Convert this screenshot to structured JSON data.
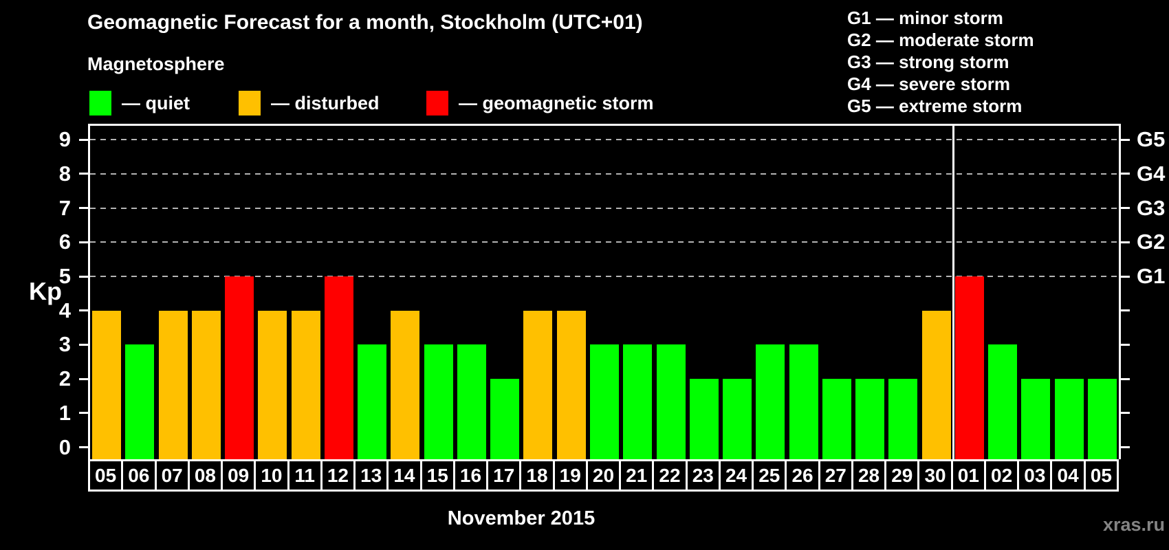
{
  "header": {
    "title": "Geomagnetic Forecast for a month, Stockholm (UTC+01)",
    "subtitle": "Magnetosphere"
  },
  "magnetosphere_legend": {
    "items": [
      {
        "key": "quiet",
        "label": "— quiet",
        "color": "#00ff00"
      },
      {
        "key": "disturbed",
        "label": "— disturbed",
        "color": "#ffc000"
      },
      {
        "key": "storm",
        "label": "— geomagnetic storm",
        "color": "#ff0000"
      }
    ]
  },
  "storm_scale_legend": {
    "items": [
      "G1 — minor storm",
      "G2 — moderate storm",
      "G3 — strong storm",
      "G4 — severe storm",
      "G5 — extreme storm"
    ]
  },
  "chart_data": {
    "type": "bar",
    "title": "Geomagnetic Forecast for a month, Stockholm (UTC+01)",
    "ylabel": "Kp",
    "xlabel": "November 2015",
    "ylim": [
      0,
      9
    ],
    "left_axis_ticks": [
      0,
      1,
      2,
      3,
      4,
      5,
      6,
      7,
      8,
      9
    ],
    "gridlines_at_kp": [
      5,
      6,
      7,
      8,
      9
    ],
    "right_axis_labels": [
      {
        "kp": 5,
        "label": "G1"
      },
      {
        "kp": 6,
        "label": "G2"
      },
      {
        "kp": 7,
        "label": "G3"
      },
      {
        "kp": 8,
        "label": "G4"
      },
      {
        "kp": 9,
        "label": "G5"
      }
    ],
    "month_separator_before_index": 26,
    "days": [
      {
        "day": "05",
        "kp": 4,
        "status": "disturbed"
      },
      {
        "day": "06",
        "kp": 3,
        "status": "quiet"
      },
      {
        "day": "07",
        "kp": 4,
        "status": "disturbed"
      },
      {
        "day": "08",
        "kp": 4,
        "status": "disturbed"
      },
      {
        "day": "09",
        "kp": 5,
        "status": "storm"
      },
      {
        "day": "10",
        "kp": 4,
        "status": "disturbed"
      },
      {
        "day": "11",
        "kp": 4,
        "status": "disturbed"
      },
      {
        "day": "12",
        "kp": 5,
        "status": "storm"
      },
      {
        "day": "13",
        "kp": 3,
        "status": "quiet"
      },
      {
        "day": "14",
        "kp": 4,
        "status": "disturbed"
      },
      {
        "day": "15",
        "kp": 3,
        "status": "quiet"
      },
      {
        "day": "16",
        "kp": 3,
        "status": "quiet"
      },
      {
        "day": "17",
        "kp": 2,
        "status": "quiet"
      },
      {
        "day": "18",
        "kp": 4,
        "status": "disturbed"
      },
      {
        "day": "19",
        "kp": 4,
        "status": "disturbed"
      },
      {
        "day": "20",
        "kp": 3,
        "status": "quiet"
      },
      {
        "day": "21",
        "kp": 3,
        "status": "quiet"
      },
      {
        "day": "22",
        "kp": 3,
        "status": "quiet"
      },
      {
        "day": "23",
        "kp": 2,
        "status": "quiet"
      },
      {
        "day": "24",
        "kp": 2,
        "status": "quiet"
      },
      {
        "day": "25",
        "kp": 3,
        "status": "quiet"
      },
      {
        "day": "26",
        "kp": 3,
        "status": "quiet"
      },
      {
        "day": "27",
        "kp": 2,
        "status": "quiet"
      },
      {
        "day": "28",
        "kp": 2,
        "status": "quiet"
      },
      {
        "day": "29",
        "kp": 2,
        "status": "quiet"
      },
      {
        "day": "30",
        "kp": 4,
        "status": "disturbed"
      },
      {
        "day": "01",
        "kp": 5,
        "status": "storm"
      },
      {
        "day": "02",
        "kp": 3,
        "status": "quiet"
      },
      {
        "day": "03",
        "kp": 2,
        "status": "quiet"
      },
      {
        "day": "04",
        "kp": 2,
        "status": "quiet"
      },
      {
        "day": "05",
        "kp": 2,
        "status": "quiet"
      }
    ]
  },
  "footer": {
    "month_label": "November 2015",
    "watermark": "xras.ru"
  }
}
